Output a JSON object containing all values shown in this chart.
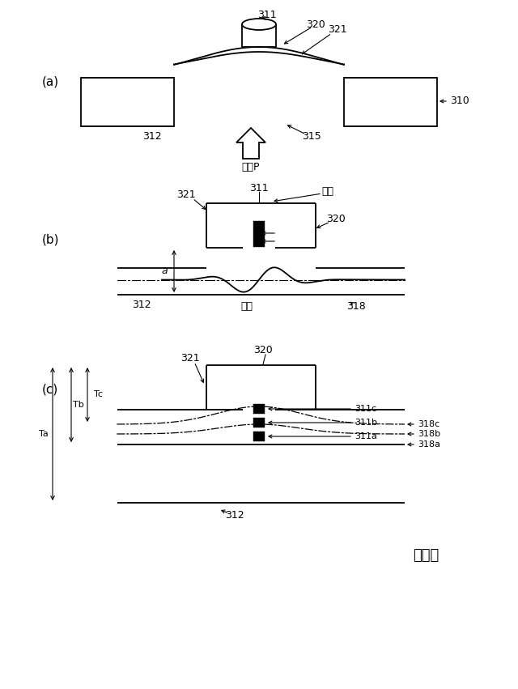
{
  "fig_width": 6.4,
  "fig_height": 8.51,
  "bg_color": "#ffffff",
  "lw": 1.3,
  "thin_lw": 0.8,
  "label_a": "(a)",
  "label_b": "(b)",
  "label_c": "(c)",
  "fig_label": "図２４",
  "pressure": "圧力P",
  "tension": "引張",
  "compression": "圧縮",
  "a_label": "a",
  "Ta": "Ta",
  "Tb": "Tb",
  "Tc": "Tc"
}
